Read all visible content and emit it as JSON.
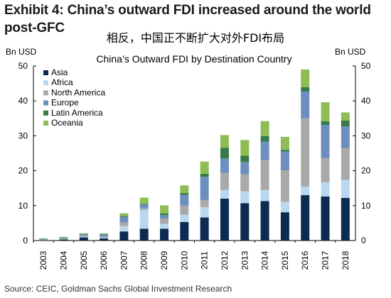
{
  "header": {
    "exhibit_title": "Exhibit 4: China’s outward FDI increased around the world post-GFC",
    "subtitle_cn": "相反，中国正不断扩大对外FDI布局"
  },
  "footer": {
    "source": "Source: CEIC, Goldman Sachs Global Investment Research"
  },
  "colors": {
    "Asia": "#0d2a52",
    "Africa": "#b9d7ee",
    "North America": "#a9a9a9",
    "Europe": "#6d8fbf",
    "Latin America": "#357a48",
    "Oceania": "#8fbd55"
  },
  "chart_data": {
    "type": "bar",
    "stacked": true,
    "title": "China’s Outward FDI by Destination Country",
    "ylabel_left": "Bn USD",
    "ylabel_right": "Bn USD",
    "ylim": [
      0,
      50
    ],
    "yticks": [
      0,
      10,
      20,
      30,
      40,
      50
    ],
    "grid": false,
    "legend_position": "top-left",
    "categories": [
      "2003",
      "2004",
      "2005",
      "2006",
      "2007",
      "2008",
      "2009",
      "2010",
      "2011",
      "2012",
      "2013",
      "2014",
      "2015",
      "2016",
      "2017",
      "2018"
    ],
    "series": [
      {
        "name": "Asia",
        "values": [
          0.1,
          0.3,
          0.9,
          0.6,
          2.6,
          3.4,
          3.4,
          5.3,
          6.6,
          12.0,
          10.7,
          11.3,
          8.1,
          13.0,
          12.6,
          12.2
        ]
      },
      {
        "name": "Africa",
        "values": [
          0.1,
          0.1,
          0.2,
          0.2,
          1.5,
          5.4,
          1.4,
          2.1,
          3.0,
          2.5,
          3.4,
          3.2,
          3.0,
          2.4,
          4.1,
          5.2
        ]
      },
      {
        "name": "North America",
        "values": [
          0.1,
          0.2,
          0.3,
          0.3,
          1.1,
          0.4,
          1.5,
          2.6,
          2.0,
          4.9,
          4.9,
          8.5,
          9.0,
          19.6,
          6.9,
          9.0
        ]
      },
      {
        "name": "Europe",
        "values": [
          0.1,
          0.2,
          0.4,
          0.6,
          1.6,
          1.1,
          1.0,
          3.1,
          6.7,
          4.1,
          3.5,
          5.3,
          5.4,
          7.7,
          9.5,
          6.3
        ]
      },
      {
        "name": "Latin America",
        "values": [
          0.1,
          0.1,
          0.1,
          0.2,
          0.2,
          0.2,
          0.5,
          0.5,
          0.8,
          3.1,
          1.8,
          1.6,
          0.5,
          1.2,
          1.1,
          1.7
        ]
      },
      {
        "name": "Oceania",
        "values": [
          0.1,
          0.1,
          0.2,
          0.1,
          0.8,
          1.8,
          2.3,
          2.2,
          3.5,
          3.6,
          4.5,
          4.3,
          3.7,
          5.1,
          5.4,
          2.3
        ]
      }
    ]
  }
}
